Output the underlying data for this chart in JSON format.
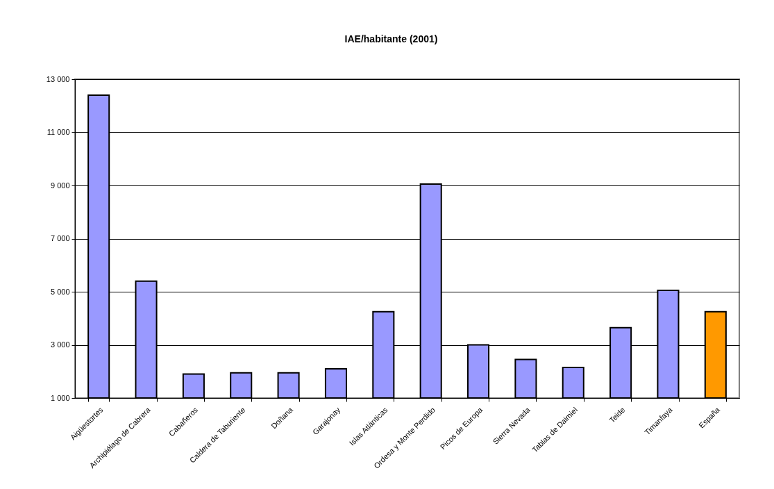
{
  "chart_data": {
    "type": "bar",
    "title": "IAE/habitante (2001)",
    "categories": [
      "Aigüestortes",
      "Archipiélago de Cabrera",
      "Cabañeros",
      "Caldera de Taburiente",
      "Doñana",
      "Garajonay",
      "Islas Atlánticas",
      "Ordesa y Monte Perdido",
      "Picos de Europa",
      "Sierra Nevada",
      "Tablas de Daimiel",
      "Teide",
      "Timanfaya",
      "España"
    ],
    "values": [
      12400,
      5400,
      1900,
      1950,
      1950,
      2100,
      4250,
      9050,
      3000,
      2450,
      2150,
      3650,
      5050,
      4250
    ],
    "colors": [
      "#9999ff",
      "#9999ff",
      "#9999ff",
      "#9999ff",
      "#9999ff",
      "#9999ff",
      "#9999ff",
      "#9999ff",
      "#9999ff",
      "#9999ff",
      "#9999ff",
      "#9999ff",
      "#9999ff",
      "#ff9900"
    ],
    "ylim": [
      1000,
      13000
    ],
    "yticks": [
      {
        "value": 1000,
        "label": "1 000"
      },
      {
        "value": 3000,
        "label": "3 000"
      },
      {
        "value": 5000,
        "label": "5 000"
      },
      {
        "value": 7000,
        "label": "7 000"
      },
      {
        "value": 9000,
        "label": "9 000"
      },
      {
        "value": 11000,
        "label": "11 000"
      },
      {
        "value": 13000,
        "label": "13 000"
      }
    ],
    "grid": "y"
  }
}
